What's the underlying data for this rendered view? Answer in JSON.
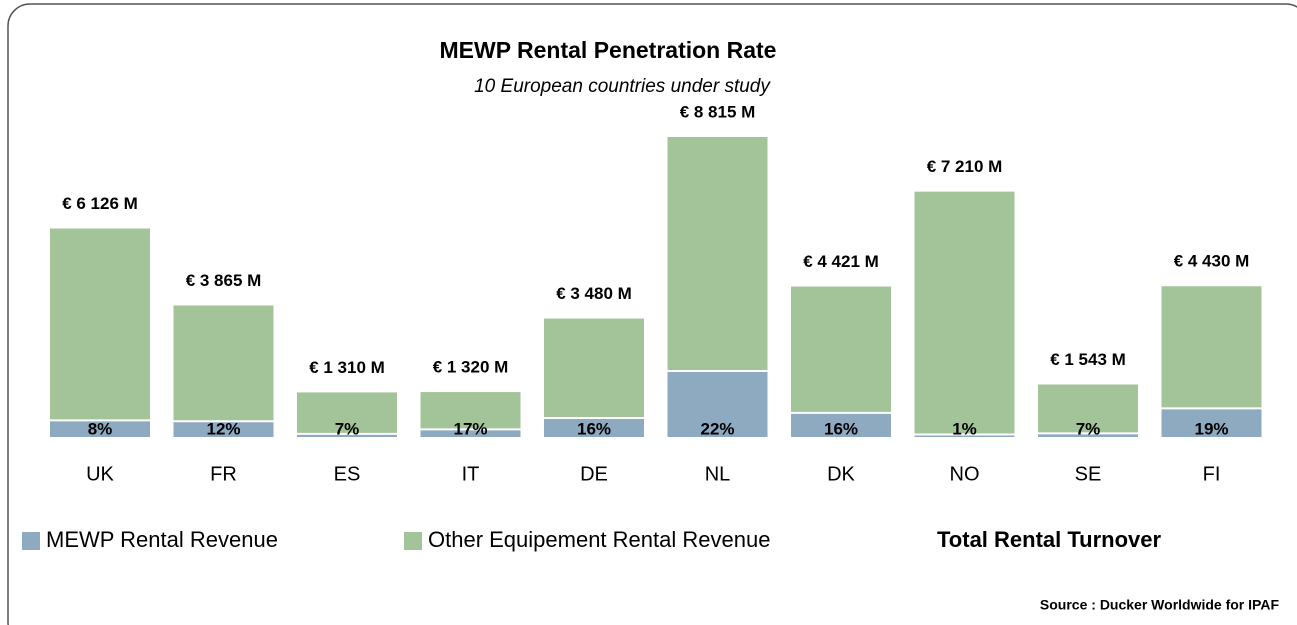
{
  "chart_data": {
    "type": "bar",
    "stacked": true,
    "title": "MEWP Rental Penetration Rate",
    "subtitle": "10 European countries under study",
    "categories": [
      "UK",
      "FR",
      "ES",
      "IT",
      "DE",
      "NL",
      "DK",
      "NO",
      "SE",
      "FI"
    ],
    "totals": [
      6126,
      3865,
      1310,
      1320,
      3480,
      8815,
      4421,
      7210,
      1543,
      4430
    ],
    "total_labels": [
      "€ 6 126 M",
      "€ 3 865 M",
      "€ 1 310 M",
      "€ 1 320 M",
      "€ 3 480 M",
      "€ 8 815 M",
      "€ 4 421 M",
      "€ 7 210 M",
      "€ 1 543 M",
      "€ 4 430 M"
    ],
    "total_name": "Total Rental Turnover",
    "series": [
      {
        "name": "MEWP Rental Revenue",
        "color": "#8eaac1",
        "values": [
          8,
          12,
          7,
          17,
          16,
          22,
          16,
          1,
          7,
          19
        ],
        "value_labels": [
          "8%",
          "12%",
          "7%",
          "17%",
          "16%",
          "22%",
          "16%",
          "1%",
          "7%",
          "19%"
        ]
      },
      {
        "name": "Other Equipement Rental Revenue",
        "color": "#a3c399"
      }
    ],
    "source": "Source : Ducker Worldwide for IPAF"
  }
}
